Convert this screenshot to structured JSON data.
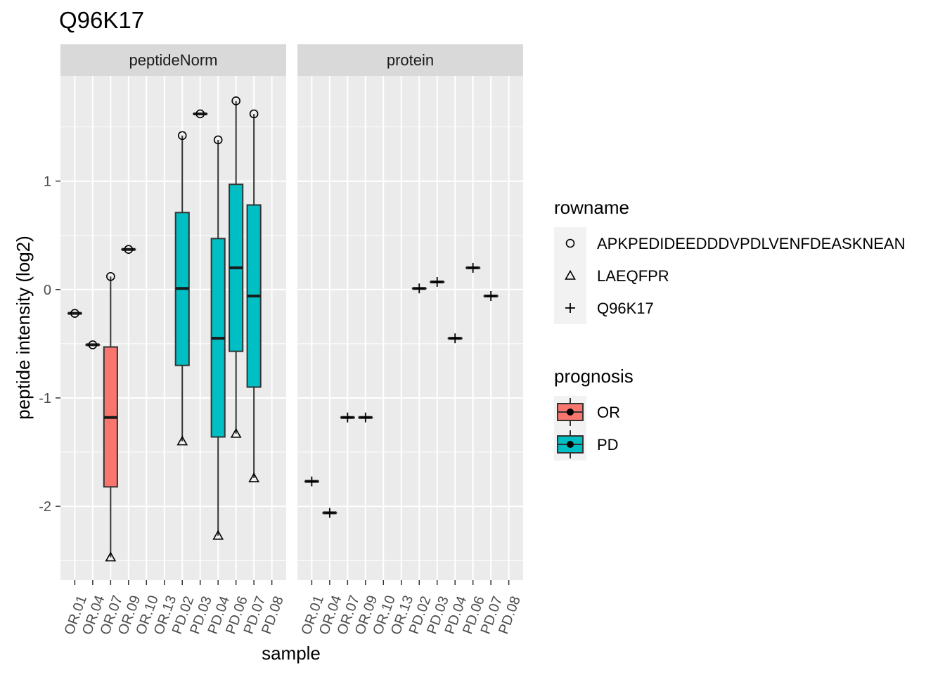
{
  "title": "Q96K17",
  "chart_data": {
    "type": "box",
    "title": "Q96K17",
    "xlabel": "sample",
    "ylabel": "peptide intensity (log2)",
    "ylim": [
      -2.68,
      1.97
    ],
    "yticks": [
      -2,
      -1,
      0,
      1
    ],
    "ytick_labels": [
      "-2",
      "-1",
      "0",
      "1"
    ],
    "categories": [
      "OR.01",
      "OR.04",
      "OR.07",
      "OR.09",
      "OR.10",
      "OR.13",
      "PD.02",
      "PD.03",
      "PD.04",
      "PD.06",
      "PD.07",
      "PD.08"
    ],
    "colors": {
      "OR": "#F8766D",
      "PD": "#00BFC4"
    },
    "panels": [
      {
        "name": "peptideNorm",
        "boxes": [
          {
            "sample": "OR.01",
            "group": "OR",
            "q1": -0.22,
            "median": -0.22,
            "q3": -0.22,
            "lo": -0.22,
            "hi": -0.22
          },
          {
            "sample": "OR.04",
            "group": "OR",
            "q1": -0.51,
            "median": -0.51,
            "q3": -0.51,
            "lo": -0.51,
            "hi": -0.51
          },
          {
            "sample": "OR.07",
            "group": "OR",
            "q1": -1.82,
            "median": -1.18,
            "q3": -0.53,
            "lo": -2.47,
            "hi": 0.12
          },
          {
            "sample": "OR.09",
            "group": "OR",
            "q1": 0.37,
            "median": 0.37,
            "q3": 0.37,
            "lo": 0.37,
            "hi": 0.37
          },
          {
            "sample": "PD.02",
            "group": "PD",
            "q1": -0.7,
            "median": 0.01,
            "q3": 0.71,
            "lo": -1.4,
            "hi": 1.42
          },
          {
            "sample": "PD.03",
            "group": "PD",
            "q1": 1.62,
            "median": 1.62,
            "q3": 1.62,
            "lo": 1.62,
            "hi": 1.62
          },
          {
            "sample": "PD.04",
            "group": "PD",
            "q1": -1.36,
            "median": -0.45,
            "q3": 0.47,
            "lo": -2.27,
            "hi": 1.38
          },
          {
            "sample": "PD.06",
            "group": "PD",
            "q1": -0.57,
            "median": 0.2,
            "q3": 0.97,
            "lo": -1.33,
            "hi": 1.74
          },
          {
            "sample": "PD.07",
            "group": "PD",
            "q1": -0.9,
            "median": -0.06,
            "q3": 0.78,
            "lo": -1.74,
            "hi": 1.62
          }
        ],
        "points": [
          {
            "sample": "OR.01",
            "rowname": "APKPEDIDEEDDDVPDLVENFDEASKNEAN",
            "y": -0.22
          },
          {
            "sample": "OR.04",
            "rowname": "APKPEDIDEEDDDVPDLVENFDEASKNEAN",
            "y": -0.51
          },
          {
            "sample": "OR.07",
            "rowname": "APKPEDIDEEDDDVPDLVENFDEASKNEAN",
            "y": 0.12
          },
          {
            "sample": "OR.07",
            "rowname": "LAEQFPR",
            "y": -2.47
          },
          {
            "sample": "OR.09",
            "rowname": "APKPEDIDEEDDDVPDLVENFDEASKNEAN",
            "y": 0.37
          },
          {
            "sample": "PD.02",
            "rowname": "APKPEDIDEEDDDVPDLVENFDEASKNEAN",
            "y": 1.42
          },
          {
            "sample": "PD.02",
            "rowname": "LAEQFPR",
            "y": -1.4
          },
          {
            "sample": "PD.03",
            "rowname": "APKPEDIDEEDDDVPDLVENFDEASKNEAN",
            "y": 1.62
          },
          {
            "sample": "PD.04",
            "rowname": "APKPEDIDEEDDDVPDLVENFDEASKNEAN",
            "y": 1.38
          },
          {
            "sample": "PD.04",
            "rowname": "LAEQFPR",
            "y": -2.27
          },
          {
            "sample": "PD.06",
            "rowname": "APKPEDIDEEDDDVPDLVENFDEASKNEAN",
            "y": 1.74
          },
          {
            "sample": "PD.06",
            "rowname": "LAEQFPR",
            "y": -1.33
          },
          {
            "sample": "PD.07",
            "rowname": "APKPEDIDEEDDDVPDLVENFDEASKNEAN",
            "y": 1.62
          },
          {
            "sample": "PD.07",
            "rowname": "LAEQFPR",
            "y": -1.74
          }
        ]
      },
      {
        "name": "protein",
        "boxes": [
          {
            "sample": "OR.01",
            "group": "OR",
            "q1": -1.77,
            "median": -1.77,
            "q3": -1.77,
            "lo": -1.77,
            "hi": -1.77
          },
          {
            "sample": "OR.04",
            "group": "OR",
            "q1": -2.06,
            "median": -2.06,
            "q3": -2.06,
            "lo": -2.06,
            "hi": -2.06
          },
          {
            "sample": "OR.07",
            "group": "OR",
            "q1": -1.18,
            "median": -1.18,
            "q3": -1.18,
            "lo": -1.18,
            "hi": -1.18
          },
          {
            "sample": "OR.09",
            "group": "OR",
            "q1": -1.18,
            "median": -1.18,
            "q3": -1.18,
            "lo": -1.18,
            "hi": -1.18
          },
          {
            "sample": "PD.02",
            "group": "PD",
            "q1": 0.01,
            "median": 0.01,
            "q3": 0.01,
            "lo": 0.01,
            "hi": 0.01
          },
          {
            "sample": "PD.03",
            "group": "PD",
            "q1": 0.07,
            "median": 0.07,
            "q3": 0.07,
            "lo": 0.07,
            "hi": 0.07
          },
          {
            "sample": "PD.04",
            "group": "PD",
            "q1": -0.45,
            "median": -0.45,
            "q3": -0.45,
            "lo": -0.45,
            "hi": -0.45
          },
          {
            "sample": "PD.06",
            "group": "PD",
            "q1": 0.2,
            "median": 0.2,
            "q3": 0.2,
            "lo": 0.2,
            "hi": 0.2
          },
          {
            "sample": "PD.07",
            "group": "PD",
            "q1": -0.06,
            "median": -0.06,
            "q3": -0.06,
            "lo": -0.06,
            "hi": -0.06
          }
        ],
        "points": [
          {
            "sample": "OR.01",
            "rowname": "Q96K17",
            "y": -1.77
          },
          {
            "sample": "OR.04",
            "rowname": "Q96K17",
            "y": -2.06
          },
          {
            "sample": "OR.07",
            "rowname": "Q96K17",
            "y": -1.18
          },
          {
            "sample": "OR.09",
            "rowname": "Q96K17",
            "y": -1.18
          },
          {
            "sample": "PD.02",
            "rowname": "Q96K17",
            "y": 0.01
          },
          {
            "sample": "PD.03",
            "rowname": "Q96K17",
            "y": 0.07
          },
          {
            "sample": "PD.04",
            "rowname": "Q96K17",
            "y": -0.45
          },
          {
            "sample": "PD.06",
            "rowname": "Q96K17",
            "y": 0.2
          },
          {
            "sample": "PD.07",
            "rowname": "Q96K17",
            "y": -0.06
          }
        ]
      }
    ],
    "legend": {
      "placement": "right",
      "rowname": {
        "title": "rowname",
        "items": [
          {
            "label": "APKPEDIDEEDDDVPDLVENFDEASKNEAN",
            "shape": "circle"
          },
          {
            "label": "LAEQFPR",
            "shape": "triangle"
          },
          {
            "label": "Q96K17",
            "shape": "plus"
          }
        ]
      },
      "prognosis": {
        "title": "prognosis",
        "items": [
          {
            "label": "OR",
            "color": "#F8766D"
          },
          {
            "label": "PD",
            "color": "#00BFC4"
          }
        ]
      }
    },
    "grid": true,
    "panel_background": "#EBEBEB",
    "strip_background": "#D9D9D9"
  }
}
